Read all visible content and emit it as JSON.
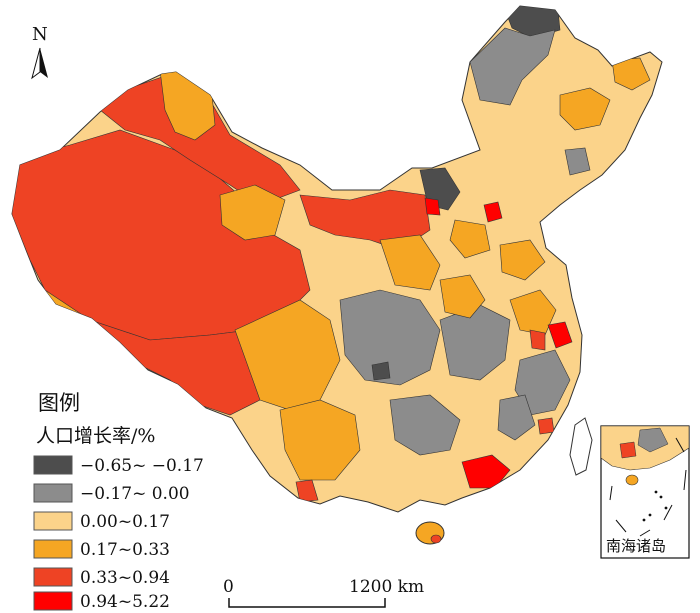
{
  "north_arrow": {
    "label": "N",
    "icon": "north-arrow-icon"
  },
  "legend": {
    "title": "图例",
    "subtitle": "人口增长率/%",
    "items": [
      {
        "label": "−0.65~ −0.17",
        "color": "#4d4d4d"
      },
      {
        "label": "−0.17~ 0.00",
        "color": "#8c8c8c"
      },
      {
        "label": "0.00~0.17",
        "color": "#fbd38a"
      },
      {
        "label": "0.17~0.33",
        "color": "#f5a623"
      },
      {
        "label": "0.33~0.94",
        "color": "#ee4324"
      },
      {
        "label": "0.94~5.22",
        "color": "#ff0000"
      }
    ]
  },
  "scale_bar": {
    "start_label": "0",
    "end_label": "1200 km"
  },
  "inset": {
    "label": "南海诸岛"
  }
}
